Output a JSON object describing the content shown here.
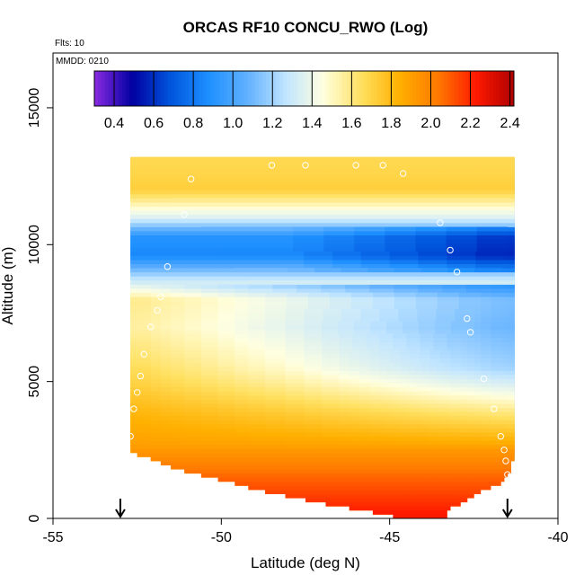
{
  "chart_data": {
    "type": "heatmap",
    "title": "ORCAS RF10 CONCU_RWO (Log)",
    "xlabel": "Latitude (deg N)",
    "ylabel": "Altitude (m)",
    "xlim": [
      -55,
      -40
    ],
    "ylim": [
      0,
      17000
    ],
    "xticks": [
      -55,
      -50,
      -45,
      -40
    ],
    "yticks": [
      0,
      5000,
      10000,
      15000
    ],
    "annotations": {
      "flts": "Flts: 10",
      "mmdd": "MMDD: 0210"
    },
    "colorbar": {
      "range": [
        0.3,
        2.42
      ],
      "ticks": [
        0.4,
        0.6,
        0.8,
        1.0,
        1.2,
        1.4,
        1.6,
        1.8,
        2.0,
        2.2,
        2.4
      ],
      "tick_labels": [
        "0.4",
        "0.6",
        "0.8",
        "1.0",
        "1.2",
        "1.4",
        "1.6",
        "1.8",
        "2.0",
        "2.2",
        "2.4"
      ],
      "colors": [
        "#8a2be2",
        "#0000a0",
        "#0055dd",
        "#1e90ff",
        "#60b0ff",
        "#bfe4ff",
        "#ffffe0",
        "#ffe060",
        "#ffb000",
        "#ff7a00",
        "#ff1a00",
        "#b00000"
      ]
    },
    "domain_edges": {
      "lat_start": [
        -52.7,
        -52.7,
        -52.5,
        -52.1,
        -51.8,
        -51.5,
        -51.1,
        -50.6,
        -50.1,
        -49.6,
        -49.2,
        -48.7,
        -48.1,
        -47.5,
        -46.9,
        -46.2,
        -45.5,
        -44.9,
        -44.1,
        -43.4,
        -42.8,
        -42.1
      ],
      "lat_end": [
        -41.3,
        -41.3,
        -41.3,
        -41.3,
        -41.4,
        -41.4,
        -41.4,
        -41.5,
        -41.6,
        -41.7,
        -42.0,
        -42.3,
        -42.5,
        -42.7,
        -42.9,
        -43.2,
        -43.4,
        -43.3,
        -43.4,
        -43.6,
        -43.8,
        -44.0
      ],
      "alt_bottom": [
        2550,
        2400,
        2250,
        2100,
        1950,
        1800,
        1650,
        1500,
        1350,
        1200,
        1050,
        900,
        750,
        600,
        450,
        300,
        150,
        0,
        0,
        0,
        0,
        0
      ],
      "alt_top": [
        13000,
        13000,
        13000,
        12600,
        12000,
        11500,
        11000,
        10500,
        9500,
        9000,
        8500,
        8000,
        7500,
        7000,
        6500,
        6000,
        5500,
        5000,
        4500,
        4000,
        3500,
        3000
      ]
    },
    "field_levels": [
      {
        "alt": 0,
        "value": 2.25
      },
      {
        "alt": 1500,
        "value": 2.08
      },
      {
        "alt": 2700,
        "value": 1.9
      },
      {
        "alt": 3800,
        "value": 1.82
      },
      {
        "alt": 5000,
        "value": 1.7
      },
      {
        "alt": 6000,
        "value": 1.62
      },
      {
        "alt": 7000,
        "value": 1.55
      },
      {
        "alt": 8000,
        "value": 1.58
      },
      {
        "alt": 8800,
        "value": 1.25
      },
      {
        "alt": 9600,
        "value": 0.85
      },
      {
        "alt": 10300,
        "value": 0.9
      },
      {
        "alt": 11000,
        "value": 1.35
      },
      {
        "alt": 12000,
        "value": 1.72
      },
      {
        "alt": 13000,
        "value": 1.68
      }
    ],
    "sample_points": [
      {
        "lat": -52.8,
        "alt": 2600
      },
      {
        "lat": -52.7,
        "alt": 3000
      },
      {
        "lat": -52.6,
        "alt": 4000
      },
      {
        "lat": -52.5,
        "alt": 4600
      },
      {
        "lat": -52.4,
        "alt": 5200
      },
      {
        "lat": -52.3,
        "alt": 6000
      },
      {
        "lat": -52.1,
        "alt": 7000
      },
      {
        "lat": -51.9,
        "alt": 7600
      },
      {
        "lat": -51.8,
        "alt": 8100
      },
      {
        "lat": -51.6,
        "alt": 9200
      },
      {
        "lat": -51.1,
        "alt": 11100
      },
      {
        "lat": -50.9,
        "alt": 12400
      },
      {
        "lat": -48.5,
        "alt": 12900
      },
      {
        "lat": -47.5,
        "alt": 12900
      },
      {
        "lat": -46.0,
        "alt": 12900
      },
      {
        "lat": -45.2,
        "alt": 12900
      },
      {
        "lat": -44.6,
        "alt": 12600
      },
      {
        "lat": -43.5,
        "alt": 10800
      },
      {
        "lat": -43.2,
        "alt": 9800
      },
      {
        "lat": -43.0,
        "alt": 9000
      },
      {
        "lat": -42.7,
        "alt": 7300
      },
      {
        "lat": -42.6,
        "alt": 6800
      },
      {
        "lat": -42.2,
        "alt": 5100
      },
      {
        "lat": -41.9,
        "alt": 4000
      },
      {
        "lat": -41.7,
        "alt": 3000
      },
      {
        "lat": -41.6,
        "alt": 2500
      },
      {
        "lat": -41.55,
        "alt": 2100
      },
      {
        "lat": -41.5,
        "alt": 1600
      },
      {
        "lat": -41.45,
        "alt": 1000
      },
      {
        "lat": -41.4,
        "alt": 500
      }
    ],
    "markers": [
      {
        "type": "arrow-down",
        "lat": -53.0
      },
      {
        "type": "arrow-down",
        "lat": -41.5
      }
    ]
  }
}
